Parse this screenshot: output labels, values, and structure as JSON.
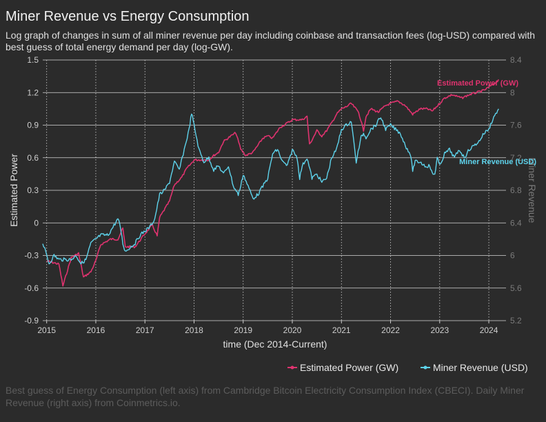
{
  "header": {
    "title": "Miner Revenue vs Energy Consumption",
    "subtitle": "Log graph of changes in sum of all miner revenue per day including coinbase and transaction fees (log-USD) compared with best guess of total energy demand per day (log-GW)."
  },
  "footnote": "Best guess of Energy Consumption (left axis) from Cambridge Bitcoin Electricity Consumption Index (CBECI). Daily Miner Revenue (right axis) from Coinmetrics.io.",
  "colors": {
    "power": "#e0336f",
    "revenue": "#5ed3ec",
    "background": "#2b2b2b",
    "grid": "#d8d8d8"
  },
  "chart_data": {
    "type": "line",
    "xlabel": "time (Dec 2014-Current)",
    "ylabel": "Estimated Power",
    "ylabel_right": "Miner Revenue",
    "xlim": [
      2014.92,
      2024.35
    ],
    "ylim": [
      -0.9,
      1.5
    ],
    "ylim_right": [
      5.2,
      8.4
    ],
    "x_ticks": [
      "2015",
      "2016",
      "2017",
      "2018",
      "2019",
      "2020",
      "2021",
      "2022",
      "2023",
      "2024"
    ],
    "y_ticks": [
      "1.5",
      "1.2",
      "0.9",
      "0.6",
      "0.3",
      "0",
      "-0.3",
      "-0.6",
      "-0.9"
    ],
    "y_ticks_right": [
      "8.4",
      "8",
      "7.6",
      "7.2",
      "6.8",
      "6.4",
      "6",
      "5.6",
      "5.2"
    ],
    "grid": "horizontal solid, vertical dotted",
    "legend_position": "bottom-right",
    "annotations": {
      "power": "Estimated Power (GW)",
      "revenue": "Miner Revenue (USD)"
    },
    "series": [
      {
        "name": "Estimated Power (GW)",
        "axis": "left",
        "color": "#e0336f",
        "x": [
          2015.0,
          2015.25,
          2015.33,
          2015.5,
          2015.65,
          2015.75,
          2015.9,
          2016.0,
          2016.1,
          2016.3,
          2016.45,
          2016.55,
          2016.6,
          2016.8,
          2017.0,
          2017.15,
          2017.25,
          2017.3,
          2017.5,
          2017.6,
          2017.75,
          2017.85,
          2017.95,
          2018.0,
          2018.1,
          2018.3,
          2018.4,
          2018.5,
          2018.6,
          2018.75,
          2018.85,
          2018.95,
          2019.05,
          2019.2,
          2019.4,
          2019.5,
          2019.6,
          2019.75,
          2019.9,
          2020.0,
          2020.1,
          2020.2,
          2020.3,
          2020.35,
          2020.5,
          2020.6,
          2020.7,
          2020.8,
          2020.9,
          2021.0,
          2021.1,
          2021.2,
          2021.35,
          2021.45,
          2021.5,
          2021.6,
          2021.75,
          2021.9,
          2022.0,
          2022.15,
          2022.3,
          2022.45,
          2022.6,
          2022.75,
          2022.85,
          2023.0,
          2023.1,
          2023.25,
          2023.45,
          2023.6,
          2023.75,
          2023.9,
          2024.0,
          2024.1,
          2024.2
        ],
        "y": [
          -0.35,
          -0.38,
          -0.58,
          -0.32,
          -0.28,
          -0.5,
          -0.45,
          -0.35,
          -0.2,
          -0.15,
          -0.15,
          -0.05,
          -0.22,
          -0.22,
          -0.1,
          -0.02,
          -0.12,
          0.05,
          0.2,
          0.35,
          0.42,
          0.5,
          0.55,
          0.58,
          0.58,
          0.58,
          0.62,
          0.65,
          0.75,
          0.8,
          0.83,
          0.68,
          0.62,
          0.65,
          0.78,
          0.8,
          0.78,
          0.88,
          0.92,
          0.95,
          0.95,
          0.95,
          0.98,
          0.72,
          0.85,
          0.8,
          0.85,
          0.92,
          1.0,
          1.05,
          1.07,
          1.1,
          1.02,
          0.85,
          0.98,
          1.05,
          1.02,
          1.08,
          1.1,
          1.12,
          1.08,
          1.0,
          1.05,
          1.05,
          1.03,
          1.1,
          1.15,
          1.18,
          1.15,
          1.18,
          1.2,
          1.22,
          1.25,
          1.28,
          1.32
        ]
      },
      {
        "name": "Miner Revenue (USD)",
        "axis": "right",
        "color": "#5ed3ec",
        "x": [
          2014.92,
          2015.0,
          2015.05,
          2015.15,
          2015.25,
          2015.35,
          2015.5,
          2015.6,
          2015.7,
          2015.8,
          2015.9,
          2016.0,
          2016.1,
          2016.25,
          2016.35,
          2016.45,
          2016.5,
          2016.55,
          2016.6,
          2016.7,
          2016.8,
          2016.9,
          2017.0,
          2017.1,
          2017.2,
          2017.3,
          2017.4,
          2017.5,
          2017.6,
          2017.7,
          2017.8,
          2017.9,
          2017.95,
          2018.0,
          2018.1,
          2018.2,
          2018.3,
          2018.4,
          2018.5,
          2018.6,
          2018.7,
          2018.8,
          2018.9,
          2018.95,
          2019.0,
          2019.1,
          2019.2,
          2019.3,
          2019.4,
          2019.5,
          2019.6,
          2019.7,
          2019.8,
          2019.9,
          2020.0,
          2020.1,
          2020.15,
          2020.2,
          2020.3,
          2020.4,
          2020.5,
          2020.6,
          2020.7,
          2020.8,
          2020.9,
          2021.0,
          2021.1,
          2021.2,
          2021.3,
          2021.4,
          2021.45,
          2021.5,
          2021.6,
          2021.7,
          2021.8,
          2021.9,
          2022.0,
          2022.1,
          2022.2,
          2022.3,
          2022.4,
          2022.45,
          2022.5,
          2022.6,
          2022.7,
          2022.8,
          2022.85,
          2022.9,
          2022.95,
          2023.0,
          2023.1,
          2023.2,
          2023.3,
          2023.4,
          2023.5,
          2023.6,
          2023.7,
          2023.8,
          2023.9,
          2024.0,
          2024.1,
          2024.2
        ],
        "y": [
          6.15,
          6.0,
          5.9,
          6.0,
          5.95,
          5.95,
          5.95,
          6.0,
          5.9,
          5.95,
          6.15,
          6.2,
          6.25,
          6.25,
          6.35,
          6.45,
          6.35,
          6.15,
          6.05,
          6.1,
          6.15,
          6.25,
          6.3,
          6.35,
          6.45,
          6.75,
          6.8,
          6.9,
          7.15,
          7.05,
          7.3,
          7.55,
          7.75,
          7.6,
          7.3,
          7.15,
          7.2,
          7.05,
          7.1,
          7.0,
          7.1,
          6.85,
          6.75,
          6.85,
          7.0,
          6.85,
          6.7,
          6.75,
          6.85,
          6.95,
          7.25,
          7.3,
          7.15,
          7.1,
          7.3,
          7.2,
          6.95,
          7.1,
          7.2,
          6.95,
          7.0,
          6.9,
          6.95,
          7.2,
          7.3,
          7.55,
          7.6,
          7.65,
          7.15,
          7.45,
          7.5,
          7.45,
          7.55,
          7.6,
          7.7,
          7.55,
          7.6,
          7.55,
          7.5,
          7.35,
          7.25,
          7.05,
          7.15,
          7.15,
          7.1,
          7.1,
          7.0,
          7.0,
          7.2,
          7.1,
          7.25,
          7.3,
          7.2,
          7.3,
          7.2,
          7.3,
          7.35,
          7.4,
          7.5,
          7.55,
          7.7,
          7.8
        ]
      }
    ]
  }
}
